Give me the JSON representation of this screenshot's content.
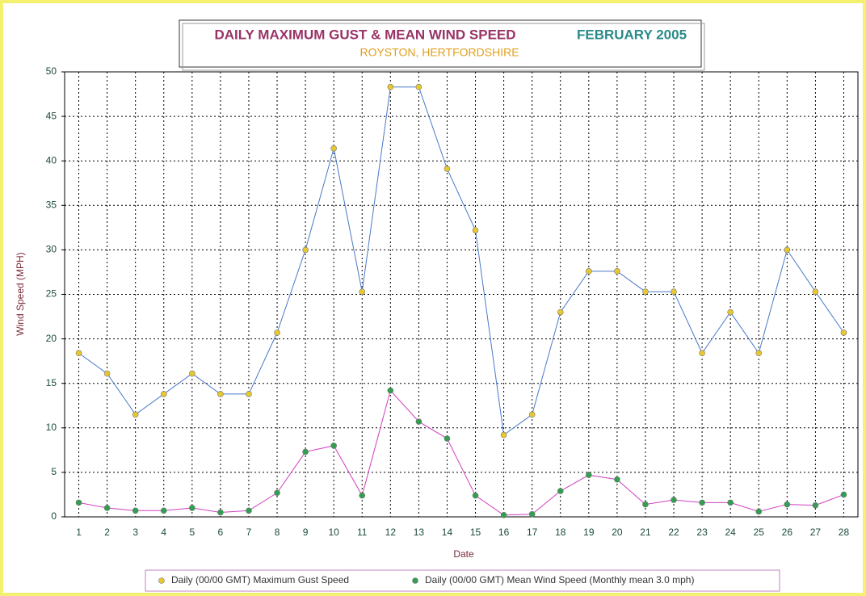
{
  "chart_data": {
    "type": "line",
    "title": "DAILY MAXIMUM GUST & MEAN WIND SPEED",
    "title_date": "FEBRUARY 2005",
    "subtitle": "ROYSTON, HERTFORDSHIRE",
    "x_label": "Date",
    "y_label": "Wind Speed (MPH)",
    "categories": [
      "1",
      "2",
      "3",
      "4",
      "5",
      "6",
      "7",
      "8",
      "9",
      "10",
      "11",
      "12",
      "13",
      "14",
      "15",
      "16",
      "17",
      "18",
      "19",
      "20",
      "21",
      "22",
      "23",
      "24",
      "25",
      "26",
      "27",
      "28"
    ],
    "series": [
      {
        "name": "Daily (00/00 GMT) Maximum Gust Speed",
        "color": "#4a78c8",
        "marker_color": "#e8c830",
        "values": [
          18.4,
          16.1,
          11.5,
          13.8,
          16.1,
          13.8,
          13.8,
          20.7,
          30.0,
          41.4,
          25.3,
          48.3,
          48.3,
          39.1,
          32.2,
          9.2,
          11.5,
          23.0,
          27.6,
          27.6,
          25.3,
          25.3,
          18.4,
          23.0,
          18.4,
          30.0,
          25.3,
          20.7
        ]
      },
      {
        "name": "Daily (00/00 GMT) Mean Wind Speed (Monthly mean 3.0 mph)",
        "color": "#d040c0",
        "marker_color": "#30a050",
        "values": [
          1.6,
          1.0,
          0.7,
          0.7,
          1.0,
          0.5,
          0.7,
          2.7,
          7.3,
          8.0,
          2.4,
          14.2,
          10.7,
          8.8,
          2.4,
          0.2,
          0.3,
          2.9,
          4.7,
          4.2,
          1.4,
          1.9,
          1.6,
          1.6,
          0.6,
          1.4,
          1.3,
          2.5
        ]
      }
    ],
    "ylim": [
      0,
      50
    ],
    "yticks": [
      0,
      5,
      10,
      15,
      20,
      25,
      30,
      35,
      40,
      45,
      50
    ],
    "grid": true
  }
}
